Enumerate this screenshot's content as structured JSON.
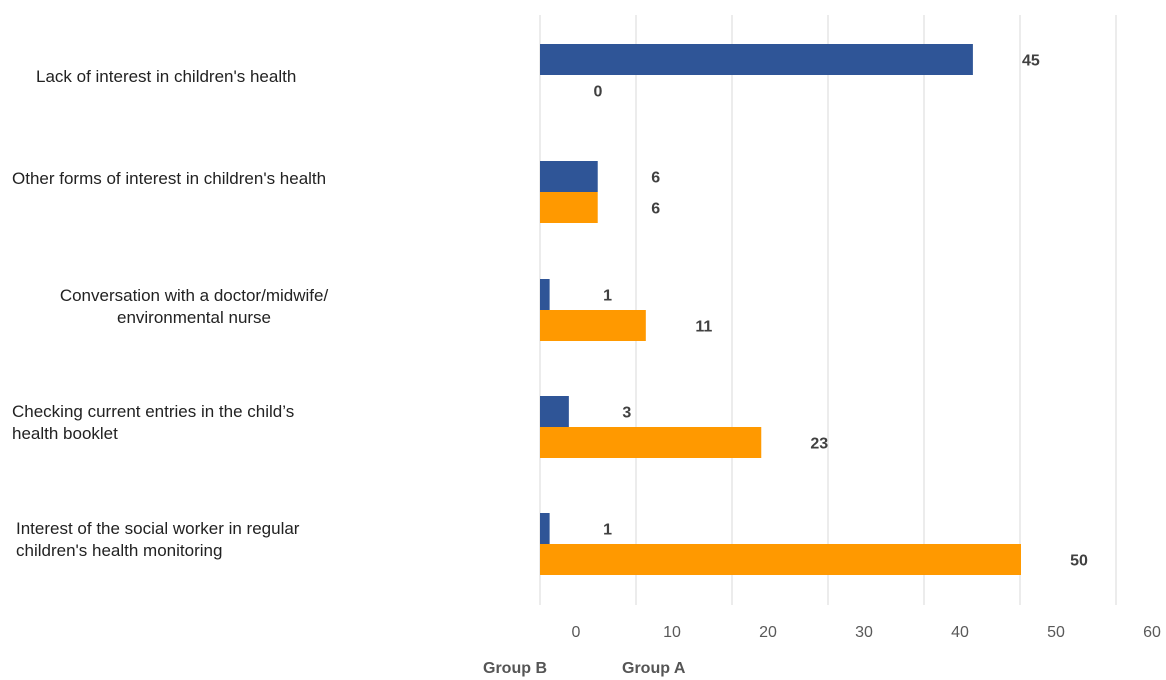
{
  "chart_data": {
    "type": "bar",
    "orientation": "horizontal",
    "categories": [
      "Lack of interest in children's health",
      "Other forms of interest in children's health",
      "Conversation with a doctor/midwife/\nenvironmental nurse",
      "Checking current entries in the child’s\n health booklet",
      "Interest of the social worker in regular\n children's health monitoring"
    ],
    "series": [
      {
        "name": "Group B",
        "color": "#2f5597",
        "values": [
          45,
          6,
          1,
          3,
          1
        ]
      },
      {
        "name": "Group A",
        "color": "#ff9900",
        "values": [
          0,
          6,
          11,
          23,
          50
        ]
      }
    ],
    "xlim": [
      0,
      60
    ],
    "xticks": [
      "0",
      "10",
      "20",
      "30",
      "40",
      "50",
      "60"
    ],
    "grid": true,
    "data_labels": true,
    "legend_placement": "bottom"
  }
}
